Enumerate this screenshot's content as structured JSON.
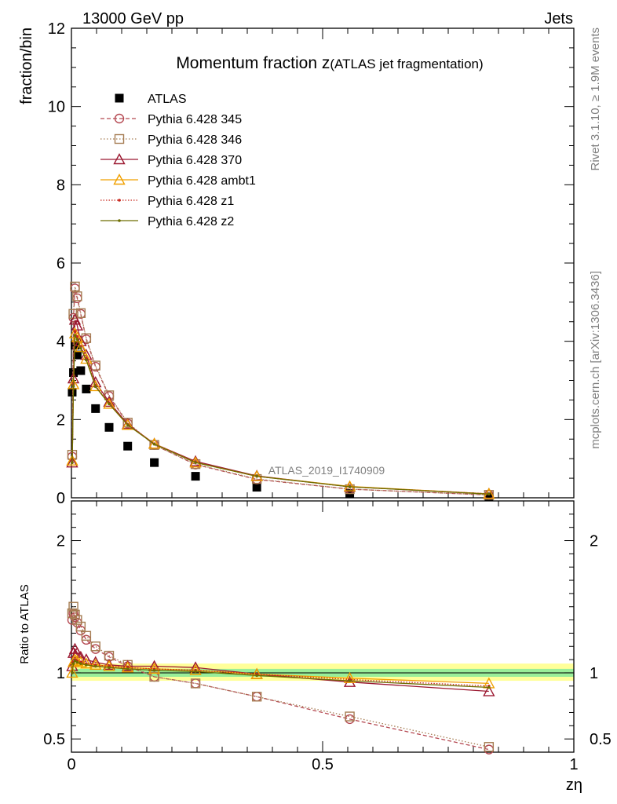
{
  "header": {
    "left": "13000 GeV pp",
    "right": "Jets"
  },
  "side_text": {
    "rivet": "Rivet 3.1.10, ≥ 1.9M events",
    "mcplots": "mcplots.cern.ch [arXiv:1306.3436]"
  },
  "watermark": "ATLAS_2019_I1740909",
  "chart_data": [
    {
      "type": "scatter",
      "title_main": "Momentum fraction z",
      "title_sub": "(ATLAS jet fragmentation)",
      "ylabel": "fraction/bin",
      "xlabel": "",
      "xlim": [
        0,
        1
      ],
      "ylim": [
        0,
        12
      ],
      "y_ticks": [
        "0",
        "2",
        "4",
        "6",
        "8",
        "10",
        "12"
      ],
      "legend": [
        {
          "name": "ATLAS",
          "color": "#000000",
          "marker": "square-filled",
          "dash": "none"
        },
        {
          "name": "Pythia 6.428 345",
          "color": "#b54952",
          "marker": "circle-open",
          "dash": "5,3"
        },
        {
          "name": "Pythia 6.428 346",
          "color": "#a57c52",
          "marker": "square-open",
          "dash": "1.5,2.5"
        },
        {
          "name": "Pythia 6.428 370",
          "color": "#9b1830",
          "marker": "triangle-open",
          "dash": "none"
        },
        {
          "name": "Pythia 6.428 ambt1",
          "color": "#f0a000",
          "marker": "triangle-open",
          "dash": "none"
        },
        {
          "name": "Pythia 6.428 z1",
          "color": "#c8281e",
          "marker": "dot",
          "dash": "1.5,2"
        },
        {
          "name": "Pythia 6.428 z2",
          "color": "#6e6e00",
          "marker": "dot",
          "dash": "none"
        }
      ],
      "x": [
        0.0015,
        0.004,
        0.007,
        0.0115,
        0.0185,
        0.0295,
        0.048,
        0.075,
        0.112,
        0.165,
        0.247,
        0.369,
        0.554,
        0.831
      ],
      "series": [
        {
          "name": "ATLAS",
          "values": [
            2.7,
            3.2,
            3.9,
            3.65,
            3.25,
            2.78,
            2.28,
            1.8,
            1.32,
            0.9,
            0.55,
            0.27,
            0.11,
            0.025
          ]
        },
        {
          "name": "Pythia 6.428 345",
          "values": [
            1.05,
            4.6,
            5.35,
            5.1,
            4.7,
            4.05,
            3.35,
            2.6,
            1.9,
            1.35,
            0.85,
            0.47,
            0.22,
            0.072
          ]
        },
        {
          "name": "Pythia 6.428 346",
          "values": [
            1.1,
            4.7,
            5.4,
            5.15,
            4.72,
            4.08,
            3.38,
            2.62,
            1.92,
            1.35,
            0.86,
            0.48,
            0.22,
            0.075
          ]
        },
        {
          "name": "Pythia 6.428 370",
          "values": [
            0.9,
            3.05,
            4.55,
            4.4,
            4.0,
            3.65,
            2.95,
            2.45,
            1.88,
            1.38,
            0.93,
            0.56,
            0.28,
            0.1
          ]
        },
        {
          "name": "Pythia 6.428 ambt1",
          "values": [
            0.95,
            2.9,
            4.2,
            4.1,
            3.85,
            3.55,
            2.85,
            2.4,
            1.86,
            1.38,
            0.9,
            0.55,
            0.29,
            0.1
          ]
        },
        {
          "name": "Pythia 6.428 z1",
          "values": [
            0.9,
            2.9,
            4.25,
            4.12,
            3.86,
            3.56,
            2.87,
            2.42,
            1.87,
            1.38,
            0.91,
            0.55,
            0.28,
            0.1
          ]
        },
        {
          "name": "Pythia 6.428 z2",
          "values": [
            0.9,
            2.85,
            4.15,
            4.05,
            3.82,
            3.52,
            2.84,
            2.4,
            1.86,
            1.37,
            0.9,
            0.55,
            0.28,
            0.095
          ]
        }
      ]
    },
    {
      "type": "scatter",
      "ylabel": "Ratio to ATLAS",
      "xlabel": "zη",
      "xlim": [
        0,
        1
      ],
      "ylim": [
        0.4,
        2.3
      ],
      "y_ticks": [
        "0.5",
        "1",
        "2"
      ],
      "x_ticks": [
        "0",
        "0.5",
        "1"
      ],
      "band_inner": [
        0.97,
        1.03
      ],
      "band_outer": [
        0.94,
        1.07
      ],
      "x": [
        0.0015,
        0.004,
        0.007,
        0.0115,
        0.0185,
        0.0295,
        0.048,
        0.075,
        0.112,
        0.165,
        0.247,
        0.369,
        0.554,
        0.831
      ],
      "series": [
        {
          "name": "Pythia 6.428 345",
          "values": [
            1.4,
            1.45,
            1.42,
            1.38,
            1.32,
            1.25,
            1.18,
            1.12,
            1.05,
            0.97,
            0.92,
            0.82,
            0.65,
            0.42
          ]
        },
        {
          "name": "Pythia 6.428 346",
          "values": [
            1.45,
            1.5,
            1.44,
            1.4,
            1.35,
            1.28,
            1.2,
            1.13,
            1.06,
            0.97,
            0.92,
            0.82,
            0.67,
            0.44
          ]
        },
        {
          "name": "Pythia 6.428 370",
          "values": [
            1.05,
            1.15,
            1.18,
            1.15,
            1.12,
            1.1,
            1.08,
            1.06,
            1.05,
            1.05,
            1.04,
            0.99,
            0.93,
            0.86
          ]
        },
        {
          "name": "Pythia 6.428 ambt1",
          "values": [
            1.0,
            1.08,
            1.1,
            1.09,
            1.08,
            1.07,
            1.06,
            1.05,
            1.04,
            1.03,
            1.02,
            0.99,
            0.96,
            0.92
          ]
        },
        {
          "name": "Pythia 6.428 z1",
          "values": [
            1.0,
            1.08,
            1.1,
            1.09,
            1.08,
            1.07,
            1.06,
            1.05,
            1.04,
            1.03,
            1.02,
            0.99,
            0.95,
            0.9
          ]
        },
        {
          "name": "Pythia 6.428 z2",
          "values": [
            1.0,
            1.07,
            1.09,
            1.08,
            1.07,
            1.06,
            1.05,
            1.04,
            1.03,
            1.02,
            1.01,
            0.98,
            0.94,
            0.89
          ]
        }
      ]
    }
  ]
}
